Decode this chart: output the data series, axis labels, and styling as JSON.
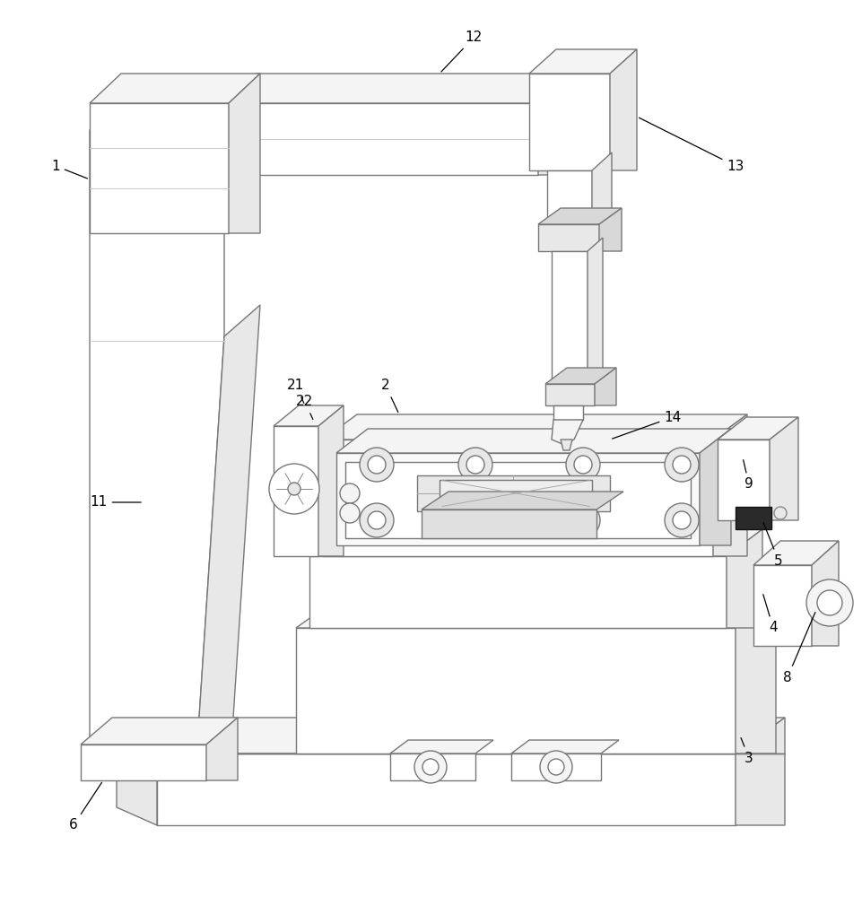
{
  "bg_color": "#ffffff",
  "lc": "#777777",
  "lc_dark": "#444444",
  "lc_mid": "#999999",
  "lw": 1.0,
  "fw": "#ffffff",
  "fl": "#f4f4f4",
  "fm": "#e8e8e8",
  "fd": "#d8d8d8",
  "fblack": "#2a2a2a"
}
